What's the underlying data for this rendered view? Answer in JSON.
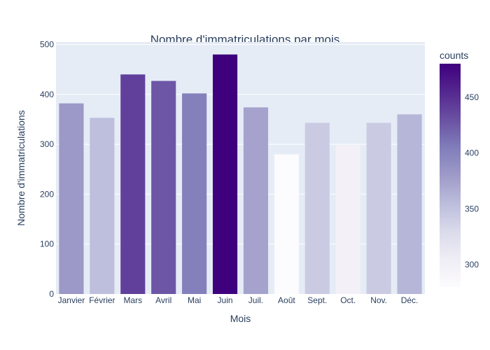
{
  "chart_data": {
    "type": "bar",
    "title": "Nombre d'immatriculations par mois",
    "xlabel": "Mois",
    "ylabel": "Nombre d'immatriculations",
    "categories": [
      "Janvier",
      "Février",
      "Mars",
      "Avril",
      "Mai",
      "Juin",
      "Juil.",
      "Août",
      "Sept.",
      "Oct.",
      "Nov.",
      "Déc."
    ],
    "values": [
      382,
      353,
      440,
      427,
      402,
      480,
      374,
      280,
      343,
      298,
      343,
      360
    ],
    "ylim": [
      0,
      505
    ],
    "yticks": [
      0,
      100,
      200,
      300,
      400,
      500
    ],
    "grid": true,
    "colorbar": {
      "title": "counts",
      "range": [
        280,
        480
      ],
      "ticks": [
        300,
        350,
        400,
        450
      ],
      "colorscale": [
        "#fcfbfd",
        "#efedf5",
        "#dadaeb",
        "#bcbddc",
        "#9e9ac8",
        "#807dba",
        "#6a51a3",
        "#54278f",
        "#3f007d"
      ]
    },
    "colors": {
      "plot_bg": "#e5ecf6",
      "grid": "#ffffff",
      "text": "#2a3f5f"
    }
  }
}
